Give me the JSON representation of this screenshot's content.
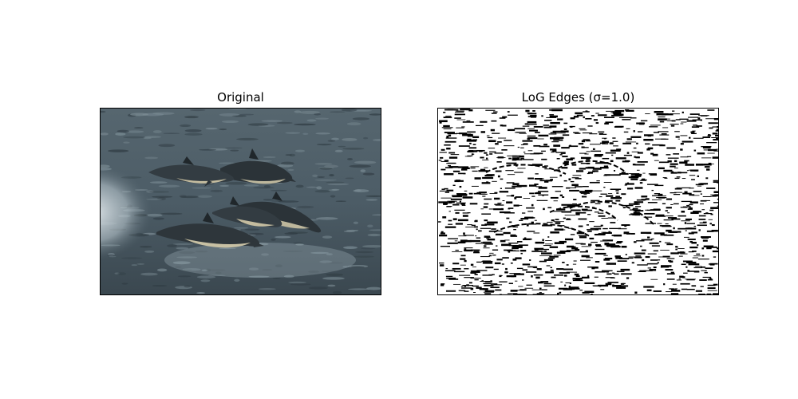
{
  "figure": {
    "panels": [
      {
        "title": "Original"
      },
      {
        "title": "LoG Edges (σ=1.0)"
      }
    ]
  },
  "colors": {
    "sea_dark": "#3f4d56",
    "sea_mid": "#5a6c75",
    "foam": "#e6ecef",
    "dolphin_back": "#2b3338",
    "dolphin_belly": "#bdb79c",
    "edge_ink": "#000000",
    "edge_bg": "#ffffff"
  }
}
